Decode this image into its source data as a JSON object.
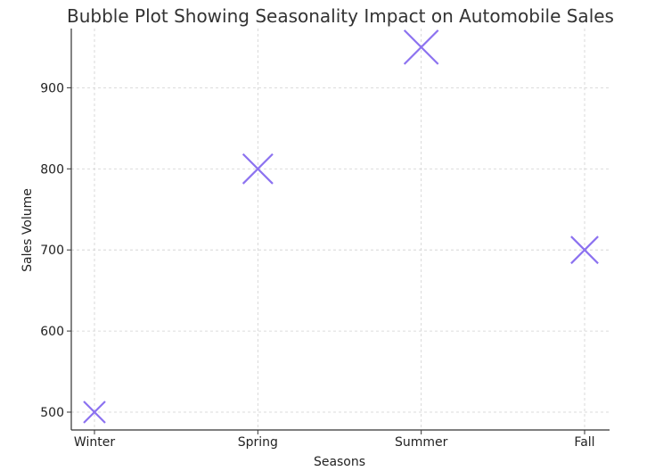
{
  "colors": {
    "marker": "#8c72f0"
  },
  "chart_data": {
    "type": "scatter",
    "marker": "x",
    "title": "Bubble Plot Showing Seasonality Impact on Automobile Sales",
    "xlabel": "Seasons",
    "ylabel": "Sales Volume",
    "categories": [
      "Winter",
      "Spring",
      "Summer",
      "Fall"
    ],
    "values": [
      500,
      800,
      950,
      700
    ],
    "ylim": [
      478,
      973
    ],
    "yticks": [
      500,
      600,
      700,
      800,
      900
    ],
    "grid": true
  }
}
